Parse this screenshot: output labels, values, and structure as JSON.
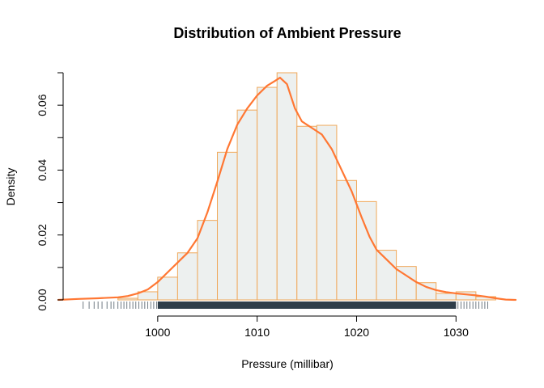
{
  "chart_data": {
    "type": "histogram",
    "title": "Distribution of Ambient Pressure",
    "xlabel": "Pressure (millibar)",
    "ylabel": "Density",
    "xlim": [
      990,
      1036
    ],
    "ylim": [
      0,
      0.07
    ],
    "x_ticks": [
      1000,
      1010,
      1020,
      1030
    ],
    "y_ticks": [
      0.0,
      0.02,
      0.04,
      0.06
    ],
    "y_tick_labels": [
      "0.00",
      "0.02",
      "0.04",
      "0.06"
    ],
    "bins": [
      {
        "start": 996,
        "end": 998,
        "density": 0.0005
      },
      {
        "start": 998,
        "end": 1000,
        "density": 0.0025
      },
      {
        "start": 1000,
        "end": 1002,
        "density": 0.007
      },
      {
        "start": 1002,
        "end": 1004,
        "density": 0.0145
      },
      {
        "start": 1004,
        "end": 1006,
        "density": 0.0245
      },
      {
        "start": 1006,
        "end": 1008,
        "density": 0.0455
      },
      {
        "start": 1008,
        "end": 1010,
        "density": 0.0585
      },
      {
        "start": 1010,
        "end": 1012,
        "density": 0.0655
      },
      {
        "start": 1012,
        "end": 1014,
        "density": 0.07
      },
      {
        "start": 1014,
        "end": 1016,
        "density": 0.0535
      },
      {
        "start": 1016,
        "end": 1018,
        "density": 0.0538
      },
      {
        "start": 1018,
        "end": 1020,
        "density": 0.0368
      },
      {
        "start": 1020,
        "end": 1022,
        "density": 0.0303
      },
      {
        "start": 1022,
        "end": 1024,
        "density": 0.0153
      },
      {
        "start": 1024,
        "end": 1026,
        "density": 0.0103
      },
      {
        "start": 1026,
        "end": 1028,
        "density": 0.0053
      },
      {
        "start": 1028,
        "end": 1030,
        "density": 0.002
      },
      {
        "start": 1030,
        "end": 1032,
        "density": 0.0025
      },
      {
        "start": 1032,
        "end": 1034,
        "density": 0.001
      }
    ],
    "density_curve": {
      "x": [
        990.0,
        992.0,
        994.0,
        996.0,
        997.0,
        998.0,
        999.0,
        1000.0,
        1001.0,
        1002.0,
        1003.0,
        1004.0,
        1005.0,
        1006.0,
        1007.0,
        1008.0,
        1009.0,
        1010.0,
        1011.0,
        1011.8,
        1012.3,
        1013.0,
        1013.8,
        1014.5,
        1015.5,
        1016.5,
        1017.5,
        1018.5,
        1019.5,
        1020.5,
        1021.3,
        1022.0,
        1023.0,
        1024.0,
        1025.0,
        1026.0,
        1027.0,
        1028.0,
        1029.0,
        1030.0,
        1031.0,
        1032.0,
        1033.0,
        1034.0,
        1035.0,
        1036.0
      ],
      "y": [
        0.0,
        0.0003,
        0.0005,
        0.0008,
        0.0012,
        0.002,
        0.0032,
        0.0055,
        0.0085,
        0.0115,
        0.0145,
        0.019,
        0.027,
        0.0365,
        0.0465,
        0.054,
        0.059,
        0.063,
        0.066,
        0.0675,
        0.0685,
        0.0665,
        0.059,
        0.055,
        0.053,
        0.051,
        0.0465,
        0.04,
        0.0335,
        0.0255,
        0.0195,
        0.0155,
        0.0125,
        0.0095,
        0.0075,
        0.0055,
        0.004,
        0.003,
        0.0024,
        0.002,
        0.0017,
        0.0014,
        0.001,
        0.0005,
        0.0001,
        0.0
      ]
    },
    "rug": {
      "sparse_left": [
        992.5,
        993.1,
        993.6,
        994.0,
        994.4,
        994.9,
        995.3,
        995.6,
        996.0,
        996.3,
        996.6,
        996.9,
        997.2,
        997.5,
        997.8,
        998.1,
        998.4,
        998.7,
        999.0,
        999.3,
        999.6,
        999.9
      ],
      "dense_range": [
        1000.0,
        1030.0
      ],
      "sparse_right": [
        1030.2,
        1030.5,
        1030.8,
        1031.1,
        1031.4,
        1031.7,
        1032.0,
        1032.3,
        1032.6,
        1032.9,
        1033.2
      ]
    },
    "colors": {
      "bar_fill": "#edf0ef",
      "bar_border": "#f0a85a",
      "curve": "#ff7733",
      "rug": "#2f3e4a",
      "axis": "#000000"
    },
    "grid": false,
    "legend": "none"
  }
}
